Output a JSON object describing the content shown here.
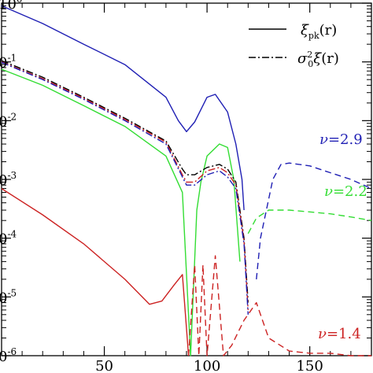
{
  "chart_data": {
    "type": "line",
    "x_scale": "linear",
    "y_scale": "log",
    "xlim": [
      0,
      180
    ],
    "ylim": [
      1e-06,
      1
    ],
    "x_ticks": [
      50,
      100,
      150
    ],
    "x_tick_labels": [
      "50",
      "100",
      "150"
    ],
    "y_ticks": [
      1,
      0.1,
      0.01,
      0.001,
      0.0001,
      1e-05,
      1e-06
    ],
    "y_tick_labels": [
      "10^0",
      "0^-1",
      "0^-2",
      "0^-3",
      "0^-4",
      "0^-5",
      "0^-6"
    ],
    "legend": {
      "position": "top-right",
      "entries": [
        {
          "label": "ξ_pk(r)",
          "style": "solid"
        },
        {
          "label": "σ_0^2 ξ(r)",
          "style": "dash-dot"
        }
      ]
    },
    "annotations": [
      {
        "text": "ν=2.9",
        "color": "#1f1fb4"
      },
      {
        "text": "ν=2.2",
        "color": "#33dd33"
      },
      {
        "text": "ν=1.4",
        "color": "#cc2222"
      }
    ],
    "series": [
      {
        "color": "#1f1fb4",
        "style": "solid",
        "x": [
          0,
          20,
          40,
          60,
          80,
          86,
          90,
          94,
          100,
          104,
          110,
          114,
          117,
          118
        ],
        "y": [
          0.9,
          0.45,
          0.2,
          0.09,
          0.025,
          0.01,
          0.0065,
          0.0095,
          0.025,
          0.028,
          0.014,
          0.004,
          0.001,
          0.0003
        ]
      },
      {
        "color": "#1f1fb4",
        "style": "dashed",
        "x": [
          124,
          126,
          132,
          136,
          140,
          150,
          160,
          170,
          180
        ],
        "y": [
          2e-05,
          0.0001,
          0.001,
          0.0018,
          0.0019,
          0.0017,
          0.0013,
          0.001,
          0.0007
        ]
      },
      {
        "color": "#33dd33",
        "style": "solid",
        "x": [
          0,
          20,
          40,
          60,
          80,
          88,
          92,
          95,
          97,
          100,
          106,
          110,
          113,
          116
        ],
        "y": [
          0.075,
          0.04,
          0.018,
          0.008,
          0.0025,
          0.0006,
          1e-06,
          0.0003,
          0.0009,
          0.0025,
          0.004,
          0.0035,
          0.001,
          4e-05
        ]
      },
      {
        "color": "#33dd33",
        "style": "dashed",
        "x": [
          120,
          124,
          130,
          140,
          150,
          160,
          170,
          180
        ],
        "y": [
          0.00012,
          0.00022,
          0.0003,
          0.0003,
          0.00028,
          0.00026,
          0.00023,
          0.0002
        ]
      },
      {
        "color": "#cc2222",
        "style": "solid",
        "x": [
          0,
          20,
          40,
          60,
          72,
          78,
          84,
          88,
          91
        ],
        "y": [
          0.0007,
          0.00025,
          8e-05,
          2e-05,
          7.5e-06,
          8.5e-06,
          1.6e-05,
          2.4e-05,
          1e-06
        ]
      },
      {
        "color": "#cc2222",
        "style": "dashed",
        "x": [
          91,
          94,
          96,
          98,
          100,
          104,
          108,
          112,
          118,
          124,
          130,
          140,
          150,
          160,
          170,
          180
        ],
        "y": [
          1e-06,
          3.5e-05,
          1e-06,
          3.5e-05,
          1e-06,
          5e-05,
          1e-06,
          1.5e-06,
          4e-06,
          8e-06,
          2e-06,
          1.2e-06,
          1.1e-06,
          1.1e-06,
          1e-06,
          1e-06
        ]
      },
      {
        "color": "#000000",
        "style": "dash-dot",
        "x": [
          0,
          20,
          40,
          60,
          80,
          88,
          90,
          94,
          100,
          106,
          110,
          114,
          118,
          120
        ],
        "y": [
          0.105,
          0.055,
          0.025,
          0.011,
          0.0045,
          0.0015,
          0.0012,
          0.0012,
          0.0016,
          0.0018,
          0.0015,
          0.0009,
          0.0001,
          8e-06
        ]
      },
      {
        "color": "#cc2222",
        "style": "dash-dot",
        "x": [
          0,
          20,
          40,
          60,
          80,
          88,
          90,
          94,
          100,
          106,
          110,
          114,
          118,
          120
        ],
        "y": [
          0.1,
          0.052,
          0.024,
          0.0105,
          0.0043,
          0.0012,
          0.0009,
          0.0009,
          0.0014,
          0.0016,
          0.0013,
          0.0008,
          9e-05,
          6e-06
        ]
      },
      {
        "color": "#1f1fb4",
        "style": "dash-dot",
        "x": [
          0,
          20,
          40,
          60,
          80,
          88,
          90,
          94,
          100,
          106,
          110,
          114,
          118,
          120
        ],
        "y": [
          0.098,
          0.05,
          0.023,
          0.01,
          0.004,
          0.0011,
          0.0008,
          0.0008,
          0.0012,
          0.0014,
          0.0011,
          0.0007,
          8e-05,
          5e-06
        ]
      }
    ]
  }
}
